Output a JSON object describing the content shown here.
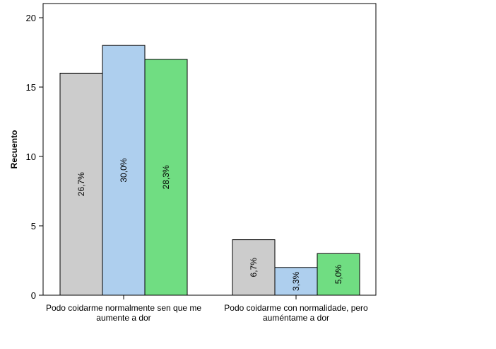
{
  "chart_data": {
    "type": "bar",
    "ylabel": "Recuento",
    "xlabel": "",
    "ylim": [
      0,
      20
    ],
    "yticks": [
      0,
      5,
      10,
      15,
      20
    ],
    "categories": [
      [
        "Podo coidarme normalmente sen que me",
        "aumente a dor"
      ],
      [
        "Podo coidarme con normalidade, pero",
        "auméntame a dor"
      ]
    ],
    "series": [
      {
        "color": "#cccccc",
        "values": [
          16,
          4
        ],
        "labels": [
          "26,7%",
          "6,7%"
        ]
      },
      {
        "color": "#aecfee",
        "values": [
          18,
          2
        ],
        "labels": [
          "30,0%",
          "3,3%"
        ]
      },
      {
        "color": "#70dd82",
        "values": [
          17,
          3
        ],
        "labels": [
          "28,3%",
          "5,0%"
        ]
      }
    ],
    "grid": false,
    "legend": "none"
  }
}
